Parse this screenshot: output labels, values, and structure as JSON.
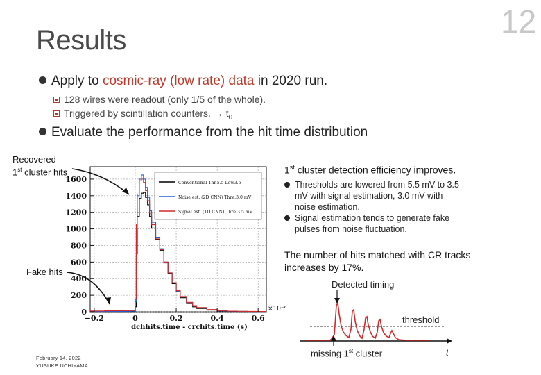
{
  "slide": {
    "title": "Results",
    "number": "12"
  },
  "bullets": {
    "b1_prefix": "Apply to ",
    "b1_highlight": "cosmic-ray (low rate) data",
    "b1_suffix": " in 2020 run.",
    "b1_sub1": "128 wires were readout (only 1/5 of the whole).",
    "b1_sub2": "Triggered by scintillation counters. → t",
    "b1_sub2_subscript": "0",
    "b2": "Evaluate the performance from the hit time distribution"
  },
  "annotations": {
    "recovered_line1": "Recovered",
    "recovered_line2_sup": "st",
    "recovered_line2_pre": "1",
    "recovered_line2_post": " cluster hits",
    "fake_hits": "Fake hits"
  },
  "right_panel": {
    "heading_pre": "1",
    "heading_sup": "st",
    "heading_post": " cluster detection efficiency improves.",
    "items": [
      "Thresholds are lowered from 5.5 mV to 3.5 mV with signal estimation, 3.0 mV with noise estimation.",
      "Signal estimation tends to generate fake pulses from noise fluctuation."
    ],
    "matched_text": "The number of hits matched with CR tracks increases by 17%.",
    "waveform": {
      "detected_timing": "Detected timing",
      "threshold": "threshold",
      "missing_pre": "missing 1",
      "missing_sup": "st",
      "missing_post": " cluster",
      "time_axis": "t"
    }
  },
  "footer": {
    "date": "February 14, 2022",
    "author": "YUSUKE UCHIYAMA"
  },
  "chart_data": {
    "type": "line",
    "xlabel": "dchhits.time - crchits.time (s)",
    "x_exponent_label": "×10⁻⁶",
    "x_ticks": [
      "−0.2",
      "0",
      "0.2",
      "0.4",
      "0.6"
    ],
    "y_ticks": [
      "0",
      "200",
      "400",
      "600",
      "800",
      "1000",
      "1200",
      "1400",
      "1600"
    ],
    "xlim": [
      -0.22,
      0.64
    ],
    "ylim": [
      0,
      1750
    ],
    "grid": true,
    "legend_position": "top-right",
    "x_scale": 1e-06,
    "series": [
      {
        "name": "Conventional Thr.5.5 Low3.5",
        "color": "#000000",
        "x": [
          -0.22,
          -0.15,
          -0.1,
          -0.05,
          -0.02,
          -0.005,
          0.0,
          0.005,
          0.01,
          0.02,
          0.03,
          0.04,
          0.05,
          0.06,
          0.07,
          0.08,
          0.1,
          0.12,
          0.14,
          0.16,
          0.18,
          0.2,
          0.22,
          0.25,
          0.28,
          0.3,
          0.35,
          0.4,
          0.45,
          0.5,
          0.55,
          0.6,
          0.64
        ],
        "y": [
          2,
          2,
          3,
          3,
          4,
          5,
          60,
          700,
          1150,
          1370,
          1430,
          1440,
          1380,
          1290,
          1150,
          1010,
          870,
          740,
          590,
          460,
          340,
          240,
          170,
          100,
          60,
          40,
          20,
          10,
          5,
          4,
          3,
          2,
          2
        ]
      },
      {
        "name": "Noise est. (2D CNN) Thre.3.0 mV",
        "color": "#1f5fd6",
        "x": [
          -0.22,
          -0.15,
          -0.1,
          -0.05,
          -0.02,
          -0.005,
          0.0,
          0.005,
          0.01,
          0.02,
          0.03,
          0.04,
          0.05,
          0.06,
          0.07,
          0.08,
          0.1,
          0.12,
          0.14,
          0.16,
          0.18,
          0.2,
          0.22,
          0.25,
          0.28,
          0.3,
          0.35,
          0.4,
          0.45,
          0.5,
          0.55,
          0.6,
          0.64
        ],
        "y": [
          4,
          5,
          5,
          6,
          7,
          8,
          120,
          1000,
          1400,
          1600,
          1650,
          1600,
          1500,
          1380,
          1220,
          1080,
          900,
          760,
          600,
          470,
          350,
          250,
          180,
          110,
          70,
          48,
          25,
          12,
          7,
          5,
          4,
          3,
          3
        ]
      },
      {
        "name": "Signal est. (1D CNN) Thre.3.5 mV",
        "color": "#d62728",
        "x": [
          -0.22,
          -0.15,
          -0.1,
          -0.05,
          -0.02,
          -0.005,
          0.0,
          0.005,
          0.01,
          0.02,
          0.03,
          0.04,
          0.05,
          0.06,
          0.07,
          0.08,
          0.1,
          0.12,
          0.14,
          0.16,
          0.18,
          0.2,
          0.22,
          0.25,
          0.28,
          0.3,
          0.35,
          0.4,
          0.45,
          0.5,
          0.55,
          0.6,
          0.64
        ],
        "y": [
          10,
          12,
          13,
          14,
          15,
          18,
          150,
          1050,
          1420,
          1580,
          1600,
          1560,
          1460,
          1340,
          1190,
          1050,
          880,
          750,
          600,
          470,
          350,
          255,
          185,
          115,
          75,
          52,
          28,
          14,
          8,
          6,
          5,
          4,
          4
        ]
      }
    ]
  }
}
